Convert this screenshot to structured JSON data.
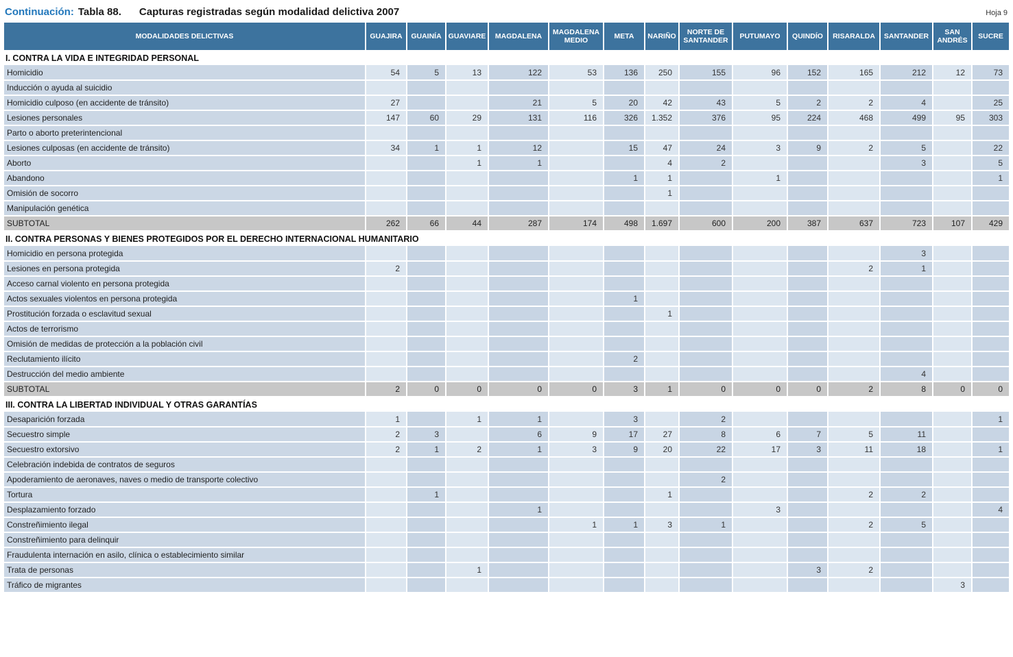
{
  "page": {
    "continuation_label": "Continuación:",
    "table_label": "Tabla 88.",
    "title": "Capturas registradas según modalidad delictiva 2007",
    "sheet": "Hoja 9"
  },
  "colors": {
    "header_bg": "#3d739e",
    "column_light": "#dce6f0",
    "column_dark": "#c8d5e4",
    "label_column_bg": "#cbd7e5",
    "subtotal_bg": "#c7c7c7",
    "title_accent": "#2277bb"
  },
  "table": {
    "row_header": "MODALIDADES DELICTIVAS",
    "columns": [
      "GUAJIRA",
      "GUAINÍA",
      "GUAVIARE",
      "MAGDALENA",
      "MAGDALENA MEDIO",
      "META",
      "NARIÑO",
      "NORTE DE SANTANDER",
      "PUTUMAYO",
      "QUINDÍO",
      "RISARALDA",
      "SANTANDER",
      "SAN ANDRÉS",
      "SUCRE"
    ],
    "sections": [
      {
        "title": "I. CONTRA LA VIDA E INTEGRIDAD PERSONAL",
        "rows": [
          {
            "label": "Homicidio",
            "values": [
              "54",
              "5",
              "13",
              "122",
              "53",
              "136",
              "250",
              "155",
              "96",
              "152",
              "165",
              "212",
              "12",
              "73"
            ]
          },
          {
            "label": "Inducción o ayuda al suicidio",
            "values": [
              "",
              "",
              "",
              "",
              "",
              "",
              "",
              "",
              "",
              "",
              "",
              "",
              "",
              ""
            ]
          },
          {
            "label": "Homicidio culposo (en accidente de tránsito)",
            "values": [
              "27",
              "",
              "",
              "21",
              "5",
              "20",
              "42",
              "43",
              "5",
              "2",
              "2",
              "4",
              "",
              "25"
            ]
          },
          {
            "label": "Lesiones personales",
            "values": [
              "147",
              "60",
              "29",
              "131",
              "116",
              "326",
              "1.352",
              "376",
              "95",
              "224",
              "468",
              "499",
              "95",
              "303"
            ]
          },
          {
            "label": "Parto o aborto preterintencional",
            "values": [
              "",
              "",
              "",
              "",
              "",
              "",
              "",
              "",
              "",
              "",
              "",
              "",
              "",
              ""
            ]
          },
          {
            "label": "Lesiones culposas (en accidente de tránsito)",
            "values": [
              "34",
              "1",
              "1",
              "12",
              "",
              "15",
              "47",
              "24",
              "3",
              "9",
              "2",
              "5",
              "",
              "22"
            ]
          },
          {
            "label": "Aborto",
            "values": [
              "",
              "",
              "1",
              "1",
              "",
              "",
              "4",
              "2",
              "",
              "",
              "",
              "3",
              "",
              "5"
            ]
          },
          {
            "label": "Abandono",
            "values": [
              "",
              "",
              "",
              "",
              "",
              "1",
              "1",
              "",
              "1",
              "",
              "",
              "",
              "",
              "1"
            ]
          },
          {
            "label": "Omisión de socorro",
            "values": [
              "",
              "",
              "",
              "",
              "",
              "",
              "1",
              "",
              "",
              "",
              "",
              "",
              "",
              ""
            ]
          },
          {
            "label": "Manipulación genética",
            "values": [
              "",
              "",
              "",
              "",
              "",
              "",
              "",
              "",
              "",
              "",
              "",
              "",
              "",
              ""
            ]
          }
        ],
        "subtotal": {
          "label": "SUBTOTAL",
          "values": [
            "262",
            "66",
            "44",
            "287",
            "174",
            "498",
            "1.697",
            "600",
            "200",
            "387",
            "637",
            "723",
            "107",
            "429"
          ]
        }
      },
      {
        "title": "II. CONTRA PERSONAS Y BIENES PROTEGIDOS POR EL DERECHO INTERNACIONAL HUMANITARIO",
        "rows": [
          {
            "label": "Homicidio en persona protegida",
            "values": [
              "",
              "",
              "",
              "",
              "",
              "",
              "",
              "",
              "",
              "",
              "",
              "3",
              "",
              ""
            ]
          },
          {
            "label": "Lesiones en persona protegida",
            "values": [
              "2",
              "",
              "",
              "",
              "",
              "",
              "",
              "",
              "",
              "",
              "2",
              "1",
              "",
              ""
            ]
          },
          {
            "label": "Acceso carnal violento en persona protegida",
            "values": [
              "",
              "",
              "",
              "",
              "",
              "",
              "",
              "",
              "",
              "",
              "",
              "",
              "",
              ""
            ]
          },
          {
            "label": "Actos sexuales violentos en persona protegida",
            "values": [
              "",
              "",
              "",
              "",
              "",
              "1",
              "",
              "",
              "",
              "",
              "",
              "",
              "",
              ""
            ]
          },
          {
            "label": "Prostitución forzada o esclavitud sexual",
            "values": [
              "",
              "",
              "",
              "",
              "",
              "",
              "1",
              "",
              "",
              "",
              "",
              "",
              "",
              ""
            ]
          },
          {
            "label": "Actos de terrorismo",
            "values": [
              "",
              "",
              "",
              "",
              "",
              "",
              "",
              "",
              "",
              "",
              "",
              "",
              "",
              ""
            ]
          },
          {
            "label": "Omisión de medidas de protección a la población civil",
            "values": [
              "",
              "",
              "",
              "",
              "",
              "",
              "",
              "",
              "",
              "",
              "",
              "",
              "",
              ""
            ]
          },
          {
            "label": "Reclutamiento ilícito",
            "values": [
              "",
              "",
              "",
              "",
              "",
              "2",
              "",
              "",
              "",
              "",
              "",
              "",
              "",
              ""
            ]
          },
          {
            "label": "Destrucción del medio ambiente",
            "values": [
              "",
              "",
              "",
              "",
              "",
              "",
              "",
              "",
              "",
              "",
              "",
              "4",
              "",
              ""
            ]
          }
        ],
        "subtotal": {
          "label": "SUBTOTAL",
          "values": [
            "2",
            "0",
            "0",
            "0",
            "0",
            "3",
            "1",
            "0",
            "0",
            "0",
            "2",
            "8",
            "0",
            "0"
          ]
        }
      },
      {
        "title": "III. CONTRA LA LIBERTAD INDIVIDUAL Y OTRAS GARANTÍAS",
        "rows": [
          {
            "label": "Desaparición forzada",
            "values": [
              "1",
              "",
              "1",
              "1",
              "",
              "3",
              "",
              "2",
              "",
              "",
              "",
              "",
              "",
              "1"
            ]
          },
          {
            "label": "Secuestro simple",
            "values": [
              "2",
              "3",
              "",
              "6",
              "9",
              "17",
              "27",
              "8",
              "6",
              "7",
              "5",
              "11",
              "",
              ""
            ]
          },
          {
            "label": "Secuestro extorsivo",
            "values": [
              "2",
              "1",
              "2",
              "1",
              "3",
              "9",
              "20",
              "22",
              "17",
              "3",
              "11",
              "18",
              "",
              "1"
            ]
          },
          {
            "label": "Celebración indebida de contratos de seguros",
            "values": [
              "",
              "",
              "",
              "",
              "",
              "",
              "",
              "",
              "",
              "",
              "",
              "",
              "",
              ""
            ]
          },
          {
            "label": "Apoderamiento de aeronaves, naves o medio de transporte colectivo",
            "values": [
              "",
              "",
              "",
              "",
              "",
              "",
              "",
              "2",
              "",
              "",
              "",
              "",
              "",
              ""
            ]
          },
          {
            "label": "Tortura",
            "values": [
              "",
              "1",
              "",
              "",
              "",
              "",
              "1",
              "",
              "",
              "",
              "2",
              "2",
              "",
              ""
            ]
          },
          {
            "label": "Desplazamiento forzado",
            "values": [
              "",
              "",
              "",
              "1",
              "",
              "",
              "",
              "",
              "3",
              "",
              "",
              "",
              "",
              "4"
            ]
          },
          {
            "label": "Constreñimiento ilegal",
            "values": [
              "",
              "",
              "",
              "",
              "1",
              "1",
              "3",
              "1",
              "",
              "",
              "2",
              "5",
              "",
              ""
            ]
          },
          {
            "label": "Constreñimiento para delinquir",
            "values": [
              "",
              "",
              "",
              "",
              "",
              "",
              "",
              "",
              "",
              "",
              "",
              "",
              "",
              ""
            ]
          },
          {
            "label": "Fraudulenta internación en asilo, clínica o establecimiento similar",
            "values": [
              "",
              "",
              "",
              "",
              "",
              "",
              "",
              "",
              "",
              "",
              "",
              "",
              "",
              ""
            ]
          },
          {
            "label": "Trata de personas",
            "values": [
              "",
              "",
              "1",
              "",
              "",
              "",
              "",
              "",
              "",
              "3",
              "2",
              "",
              "",
              ""
            ]
          },
          {
            "label": "Tráfico de migrantes",
            "values": [
              "",
              "",
              "",
              "",
              "",
              "",
              "",
              "",
              "",
              "",
              "",
              "",
              "3",
              ""
            ]
          }
        ],
        "subtotal": null
      }
    ]
  }
}
